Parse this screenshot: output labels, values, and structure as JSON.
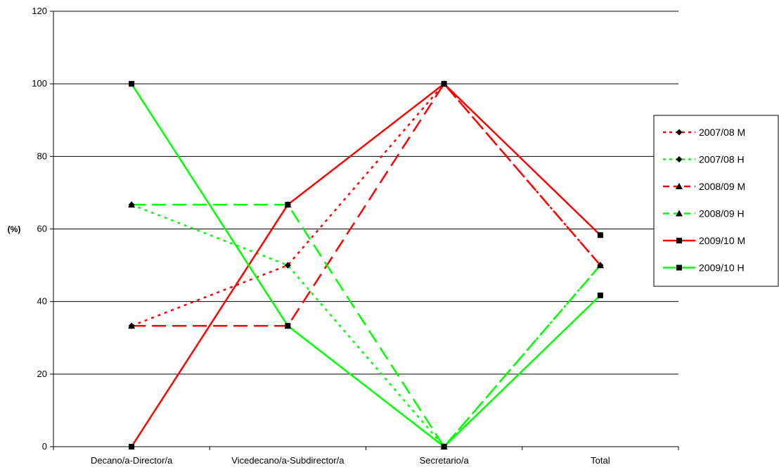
{
  "chart_data": {
    "type": "line",
    "title": "",
    "xlabel": "",
    "ylabel": "(%)",
    "ylim": [
      0,
      120
    ],
    "yticks": [
      0,
      20,
      40,
      60,
      80,
      100,
      120
    ],
    "grid": true,
    "legend_position": "right",
    "categories": [
      "Decano/a-Director/a",
      "Vicedecano/a-Subdirector/a",
      "Secretario/a",
      "Total"
    ],
    "series": [
      {
        "name": "2007/08 M",
        "values": [
          33.3,
          50,
          100,
          50
        ],
        "color": "#ff0000",
        "dash": "dotted",
        "marker": "diamond"
      },
      {
        "name": "2007/08 H",
        "values": [
          66.7,
          50,
          0,
          50
        ],
        "color": "#00ff00",
        "dash": "dotted",
        "marker": "diamond"
      },
      {
        "name": "2008/09 M",
        "values": [
          33.3,
          33.3,
          100,
          50
        ],
        "color": "#ff0000",
        "dash": "dashed",
        "marker": "triangle"
      },
      {
        "name": "2008/09 H",
        "values": [
          66.7,
          66.7,
          0,
          50
        ],
        "color": "#00ff00",
        "dash": "dashed",
        "marker": "triangle"
      },
      {
        "name": "2009/10 M",
        "values": [
          0,
          66.7,
          100,
          58.3
        ],
        "color": "#ff0000",
        "dash": "solid",
        "marker": "square"
      },
      {
        "name": "2009/10 H",
        "values": [
          100,
          33.3,
          0,
          41.7
        ],
        "color": "#00ff00",
        "dash": "solid",
        "marker": "square"
      }
    ]
  }
}
